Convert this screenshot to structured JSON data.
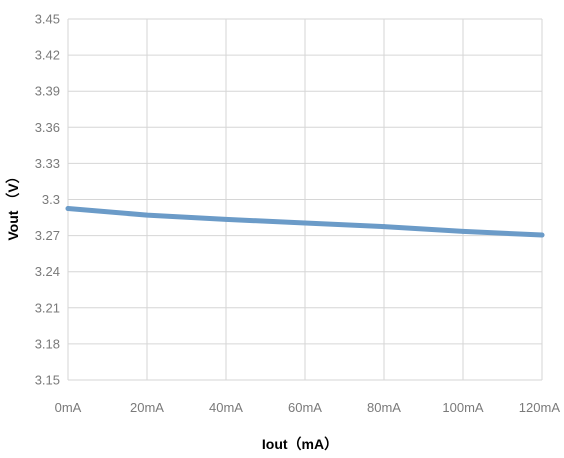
{
  "chart_data": {
    "type": "line",
    "title": "",
    "xlabel": "Iout（mA）",
    "ylabel": "Vout （V）",
    "x_tick_labels": [
      "0mA",
      "20mA",
      "40mA",
      "60mA",
      "80mA",
      "100mA",
      "120mA"
    ],
    "x": [
      0,
      20,
      40,
      60,
      80,
      100,
      120
    ],
    "xlim": [
      0,
      120
    ],
    "y_tick_labels": [
      "3.15",
      "3.18",
      "3.21",
      "3.24",
      "3.27",
      "3.3",
      "3.33",
      "3.36",
      "3.39",
      "3.42",
      "3.45"
    ],
    "y_ticks": [
      3.15,
      3.18,
      3.21,
      3.24,
      3.27,
      3.3,
      3.33,
      3.36,
      3.39,
      3.42,
      3.45
    ],
    "ylim": [
      3.15,
      3.45
    ],
    "grid": true,
    "legend": "none",
    "series": [
      {
        "values": [
          3.2925,
          3.287,
          3.2835,
          3.2805,
          3.2775,
          3.2735,
          3.2705
        ],
        "color": "#6b9bc8"
      }
    ]
  }
}
